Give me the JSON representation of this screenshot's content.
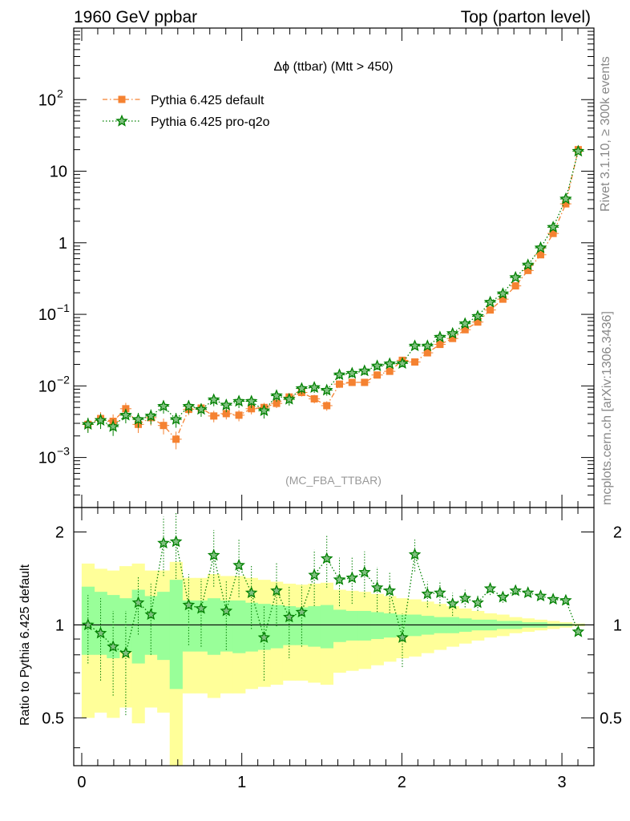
{
  "header": {
    "left": "1960 GeV ppbar",
    "right": "Top (parton level)"
  },
  "side_text": {
    "upper": "Rivet 3.1.10, ≥ 300k events",
    "lower": "mcplots.cern.ch [arXiv:1306.3436]"
  },
  "plot_title": "Δϕ (ttbar) (Mtt > 450)",
  "watermark": "(MC_FBA_TTBAR)",
  "ratio_ylabel": "Ratio to Pythia 6.425 default",
  "legend": [
    {
      "label": "Pythia 6.425 default",
      "color": "#f58231",
      "marker": "square",
      "style": "dash-dot"
    },
    {
      "label": "Pythia 6.425 pro-q2o",
      "color": "#008000",
      "marker": "star",
      "style": "dotted"
    }
  ],
  "main_ticks": {
    "y": [
      {
        "value": 0.001,
        "base": "10",
        "exp": "−3"
      },
      {
        "value": 0.01,
        "base": "10",
        "exp": "−2"
      },
      {
        "value": 0.1,
        "base": "10",
        "exp": "−1"
      },
      {
        "value": 1,
        "base": "1",
        "exp": ""
      },
      {
        "value": 10,
        "base": "10",
        "exp": ""
      },
      {
        "value": 100,
        "base": "10",
        "exp": "2"
      }
    ]
  },
  "ratio_ticks": {
    "y": [
      {
        "value": 0.5,
        "label": "0.5"
      },
      {
        "value": 1,
        "label": "1"
      },
      {
        "value": 2,
        "label": "2"
      }
    ],
    "x": [
      {
        "value": 0,
        "label": "0"
      },
      {
        "value": 1,
        "label": "1"
      },
      {
        "value": 2,
        "label": "2"
      },
      {
        "value": 3,
        "label": "3"
      }
    ]
  },
  "chart_data": [
    {
      "type": "scatter",
      "panel": "main",
      "y_scale": "log",
      "xlim": [
        -0.05,
        3.2
      ],
      "ylim": [
        0.0002,
        1000
      ],
      "x": [
        0.039,
        0.118,
        0.196,
        0.275,
        0.353,
        0.432,
        0.511,
        0.589,
        0.668,
        0.746,
        0.825,
        0.903,
        0.982,
        1.06,
        1.139,
        1.217,
        1.296,
        1.374,
        1.453,
        1.531,
        1.61,
        1.689,
        1.767,
        1.846,
        1.924,
        2.003,
        2.081,
        2.16,
        2.238,
        2.317,
        2.395,
        2.474,
        2.552,
        2.631,
        2.71,
        2.788,
        2.867,
        2.945,
        3.024,
        3.102
      ],
      "series": [
        {
          "name": "Pythia 6.425 default",
          "values": [
            0.0029,
            0.0035,
            0.0032,
            0.0048,
            0.0029,
            0.0036,
            0.0028,
            0.0018,
            0.0047,
            0.0049,
            0.0038,
            0.0041,
            0.0039,
            0.0048,
            0.005,
            0.0057,
            0.007,
            0.0081,
            0.0066,
            0.0053,
            0.0106,
            0.0112,
            0.0112,
            0.0142,
            0.016,
            0.0228,
            0.0216,
            0.029,
            0.038,
            0.046,
            0.061,
            0.078,
            0.115,
            0.163,
            0.25,
            0.41,
            0.68,
            1.35,
            3.5,
            20.0
          ],
          "errors": [
            0.0006,
            0.0008,
            0.0008,
            0.001,
            0.0007,
            0.0008,
            0.0007,
            0.0005,
            0.0008,
            0.0008,
            0.0007,
            0.0007,
            0.0007,
            0.0008,
            0.0008,
            0.0008,
            0.0009,
            0.001,
            0.0009,
            0.0008,
            0.0012,
            0.0012,
            0.0012,
            0.0014,
            0.0015,
            0.0018,
            0.0017,
            0.002,
            0.0025,
            0.003,
            0.004,
            0.005,
            0.007,
            0.009,
            0.012,
            0.018,
            0.026,
            0.04,
            0.08,
            0.25
          ]
        },
        {
          "name": "Pythia 6.425 pro-q2o",
          "values": [
            0.0029,
            0.0033,
            0.0027,
            0.0039,
            0.0034,
            0.0038,
            0.0052,
            0.0034,
            0.0052,
            0.0047,
            0.0064,
            0.0054,
            0.0061,
            0.0061,
            0.0045,
            0.0073,
            0.0065,
            0.0092,
            0.0095,
            0.0087,
            0.0143,
            0.015,
            0.0162,
            0.019,
            0.0204,
            0.0206,
            0.0362,
            0.0362,
            0.048,
            0.054,
            0.074,
            0.094,
            0.148,
            0.194,
            0.327,
            0.49,
            0.85,
            1.65,
            4.1,
            19.0
          ],
          "errors": [
            0.0007,
            0.0008,
            0.0007,
            0.0009,
            0.0008,
            0.0009,
            0.0011,
            0.0008,
            0.0011,
            0.001,
            0.0012,
            0.0011,
            0.0012,
            0.0012,
            0.001,
            0.0013,
            0.0012,
            0.0015,
            0.0015,
            0.0014,
            0.0018,
            0.0019,
            0.002,
            0.0022,
            0.0023,
            0.0023,
            0.003,
            0.003,
            0.0035,
            0.0038,
            0.005,
            0.006,
            0.008,
            0.01,
            0.014,
            0.02,
            0.03,
            0.045,
            0.09,
            0.24
          ]
        }
      ]
    },
    {
      "type": "scatter",
      "panel": "ratio",
      "ylabel": "Ratio to Pythia 6.425 default",
      "y_scale": "log",
      "xlim": [
        -0.05,
        3.2
      ],
      "ylim": [
        0.35,
        2.4
      ],
      "x": [
        0.039,
        0.118,
        0.196,
        0.275,
        0.353,
        0.432,
        0.511,
        0.589,
        0.668,
        0.746,
        0.825,
        0.903,
        0.982,
        1.06,
        1.139,
        1.217,
        1.296,
        1.374,
        1.453,
        1.531,
        1.61,
        1.689,
        1.767,
        1.846,
        1.924,
        2.003,
        2.081,
        2.16,
        2.238,
        2.317,
        2.395,
        2.474,
        2.552,
        2.631,
        2.71,
        2.788,
        2.867,
        2.945,
        3.024,
        3.102
      ],
      "reference_band_stat": [
        [
          0.8,
          1.33
        ],
        [
          0.8,
          1.28
        ],
        [
          0.78,
          1.25
        ],
        [
          0.82,
          1.22
        ],
        [
          0.75,
          1.3
        ],
        [
          0.8,
          1.24
        ],
        [
          0.77,
          1.28
        ],
        [
          0.62,
          1.4
        ],
        [
          0.82,
          1.2
        ],
        [
          0.82,
          1.2
        ],
        [
          0.8,
          1.22
        ],
        [
          0.82,
          1.2
        ],
        [
          0.81,
          1.2
        ],
        [
          0.82,
          1.18
        ],
        [
          0.83,
          1.17
        ],
        [
          0.84,
          1.16
        ],
        [
          0.86,
          1.15
        ],
        [
          0.86,
          1.14
        ],
        [
          0.85,
          1.15
        ],
        [
          0.84,
          1.16
        ],
        [
          0.88,
          1.12
        ],
        [
          0.89,
          1.11
        ],
        [
          0.89,
          1.11
        ],
        [
          0.9,
          1.1
        ],
        [
          0.91,
          1.09
        ],
        [
          0.92,
          1.08
        ],
        [
          0.92,
          1.08
        ],
        [
          0.93,
          1.07
        ],
        [
          0.94,
          1.06
        ],
        [
          0.94,
          1.06
        ],
        [
          0.95,
          1.05
        ],
        [
          0.96,
          1.04
        ],
        [
          0.96,
          1.04
        ],
        [
          0.97,
          1.03
        ],
        [
          0.97,
          1.03
        ],
        [
          0.98,
          1.02
        ],
        [
          0.98,
          1.02
        ],
        [
          0.99,
          1.01
        ],
        [
          0.99,
          1.01
        ],
        [
          0.995,
          1.005
        ]
      ],
      "reference_band_total": [
        [
          0.5,
          1.58
        ],
        [
          0.52,
          1.52
        ],
        [
          0.5,
          1.5
        ],
        [
          0.54,
          1.55
        ],
        [
          0.48,
          1.58
        ],
        [
          0.54,
          1.5
        ],
        [
          0.52,
          1.5
        ],
        [
          0.3,
          1.6
        ],
        [
          0.6,
          1.42
        ],
        [
          0.6,
          1.42
        ],
        [
          0.58,
          1.46
        ],
        [
          0.6,
          1.44
        ],
        [
          0.6,
          1.44
        ],
        [
          0.62,
          1.42
        ],
        [
          0.63,
          1.4
        ],
        [
          0.64,
          1.38
        ],
        [
          0.66,
          1.36
        ],
        [
          0.66,
          1.35
        ],
        [
          0.65,
          1.36
        ],
        [
          0.64,
          1.37
        ],
        [
          0.7,
          1.3
        ],
        [
          0.71,
          1.29
        ],
        [
          0.72,
          1.28
        ],
        [
          0.74,
          1.26
        ],
        [
          0.76,
          1.24
        ],
        [
          0.78,
          1.22
        ],
        [
          0.79,
          1.21
        ],
        [
          0.81,
          1.19
        ],
        [
          0.83,
          1.17
        ],
        [
          0.85,
          1.15
        ],
        [
          0.87,
          1.13
        ],
        [
          0.89,
          1.11
        ],
        [
          0.91,
          1.09
        ],
        [
          0.92,
          1.08
        ],
        [
          0.94,
          1.06
        ],
        [
          0.95,
          1.05
        ],
        [
          0.96,
          1.04
        ],
        [
          0.97,
          1.03
        ],
        [
          0.98,
          1.02
        ],
        [
          0.99,
          1.01
        ]
      ],
      "series": [
        {
          "name": "Pythia 6.425 pro-q2o",
          "values": [
            1.0,
            0.94,
            0.85,
            0.81,
            1.18,
            1.08,
            1.84,
            1.86,
            1.16,
            1.13,
            1.68,
            1.11,
            1.56,
            1.27,
            0.91,
            1.29,
            1.06,
            1.1,
            1.45,
            1.64,
            1.4,
            1.42,
            1.48,
            1.32,
            1.29,
            0.91,
            1.69,
            1.26,
            1.27,
            1.17,
            1.22,
            1.18,
            1.31,
            1.23,
            1.29,
            1.27,
            1.24,
            1.21,
            1.2,
            0.95
          ],
          "errors": [
            0.25,
            0.28,
            0.26,
            0.3,
            0.25,
            0.28,
            0.4,
            0.45,
            0.3,
            0.28,
            0.35,
            0.28,
            0.33,
            0.3,
            0.25,
            0.3,
            0.28,
            0.25,
            0.3,
            0.32,
            0.25,
            0.25,
            0.25,
            0.22,
            0.2,
            0.18,
            0.2,
            0.12,
            0.12,
            0.1,
            0.08,
            0.07,
            0.06,
            0.05,
            0.04,
            0.03,
            0.03,
            0.02,
            0.02,
            0.01
          ]
        }
      ]
    }
  ]
}
